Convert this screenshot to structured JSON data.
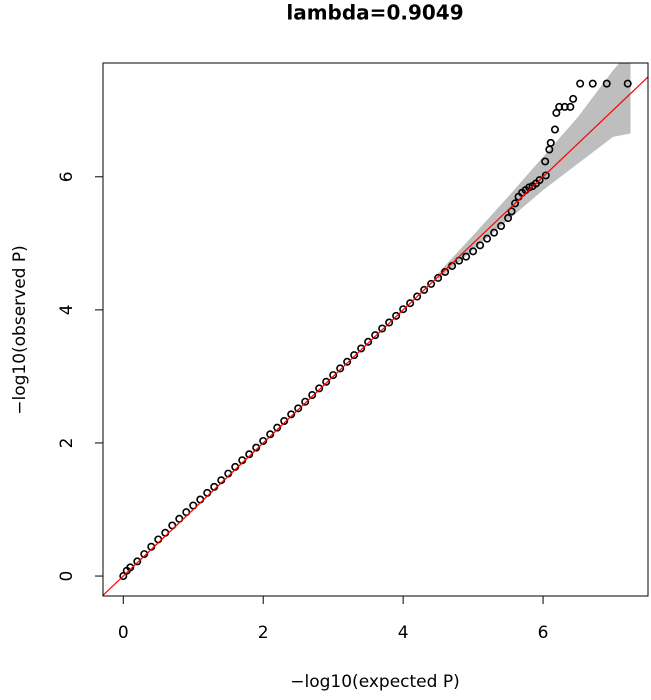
{
  "chart_data": {
    "type": "scatter",
    "title": "lambda=0.9049",
    "xlabel": "−log10(expected P)",
    "ylabel": "−log10(observed P)",
    "x": [
      0,
      0.05,
      0.1,
      0.2,
      0.3,
      0.4,
      0.5,
      0.6,
      0.7,
      0.8,
      0.9,
      1.0,
      1.1,
      1.2,
      1.3,
      1.4,
      1.5,
      1.6,
      1.7,
      1.8,
      1.9,
      2.0,
      2.1,
      2.2,
      2.3,
      2.4,
      2.5,
      2.6,
      2.7,
      2.8,
      2.9,
      3.0,
      3.1,
      3.2,
      3.3,
      3.4,
      3.5,
      3.6,
      3.7,
      3.8,
      3.9,
      4.0,
      4.1,
      4.2,
      4.3,
      4.4,
      4.5,
      4.6,
      4.7,
      4.8,
      4.9,
      5.0,
      5.1,
      5.2,
      5.3,
      5.4,
      5.5,
      5.55,
      5.6,
      5.65,
      5.7,
      5.75,
      5.8,
      5.85,
      5.9,
      5.95,
      6.03,
      6.04,
      6.09,
      6.11,
      6.17,
      6.19,
      6.23,
      6.31,
      6.39,
      6.43,
      6.53,
      6.71,
      6.91,
      7.21
    ],
    "values": [
      0,
      0.08,
      0.13,
      0.22,
      0.33,
      0.44,
      0.55,
      0.65,
      0.76,
      0.86,
      0.96,
      1.06,
      1.15,
      1.25,
      1.34,
      1.44,
      1.54,
      1.64,
      1.74,
      1.83,
      1.93,
      2.03,
      2.13,
      2.23,
      2.33,
      2.43,
      2.52,
      2.62,
      2.72,
      2.82,
      2.92,
      3.02,
      3.12,
      3.22,
      3.32,
      3.42,
      3.52,
      3.62,
      3.72,
      3.81,
      3.91,
      4.01,
      4.1,
      4.2,
      4.3,
      4.39,
      4.48,
      4.57,
      4.66,
      4.74,
      4.8,
      4.88,
      4.97,
      5.07,
      5.16,
      5.26,
      5.38,
      5.48,
      5.6,
      5.7,
      5.76,
      5.8,
      5.84,
      5.86,
      5.9,
      5.95,
      6.23,
      6.02,
      6.41,
      6.51,
      6.71,
      6.96,
      7.05,
      7.05,
      7.05,
      7.17,
      7.4,
      7.4,
      7.4,
      7.4
    ],
    "band": {
      "x": [
        4.5,
        5.0,
        5.5,
        6.0,
        6.5,
        7.0,
        7.25
      ],
      "lower": [
        4.45,
        4.9,
        5.35,
        5.8,
        6.2,
        6.6,
        6.65
      ],
      "upper": [
        4.55,
        5.12,
        5.7,
        6.3,
        6.9,
        7.6,
        7.9
      ],
      "color": "#bebebe"
    },
    "reference_line": {
      "slope": 1,
      "intercept": 0,
      "color": "#ff0000"
    },
    "color": "#000000",
    "xlim": [
      -0.29,
      7.5
    ],
    "ylim": [
      -0.3,
      7.71
    ],
    "xticks": [
      0,
      2,
      4,
      6
    ],
    "yticks": [
      0,
      2,
      4,
      6
    ]
  }
}
